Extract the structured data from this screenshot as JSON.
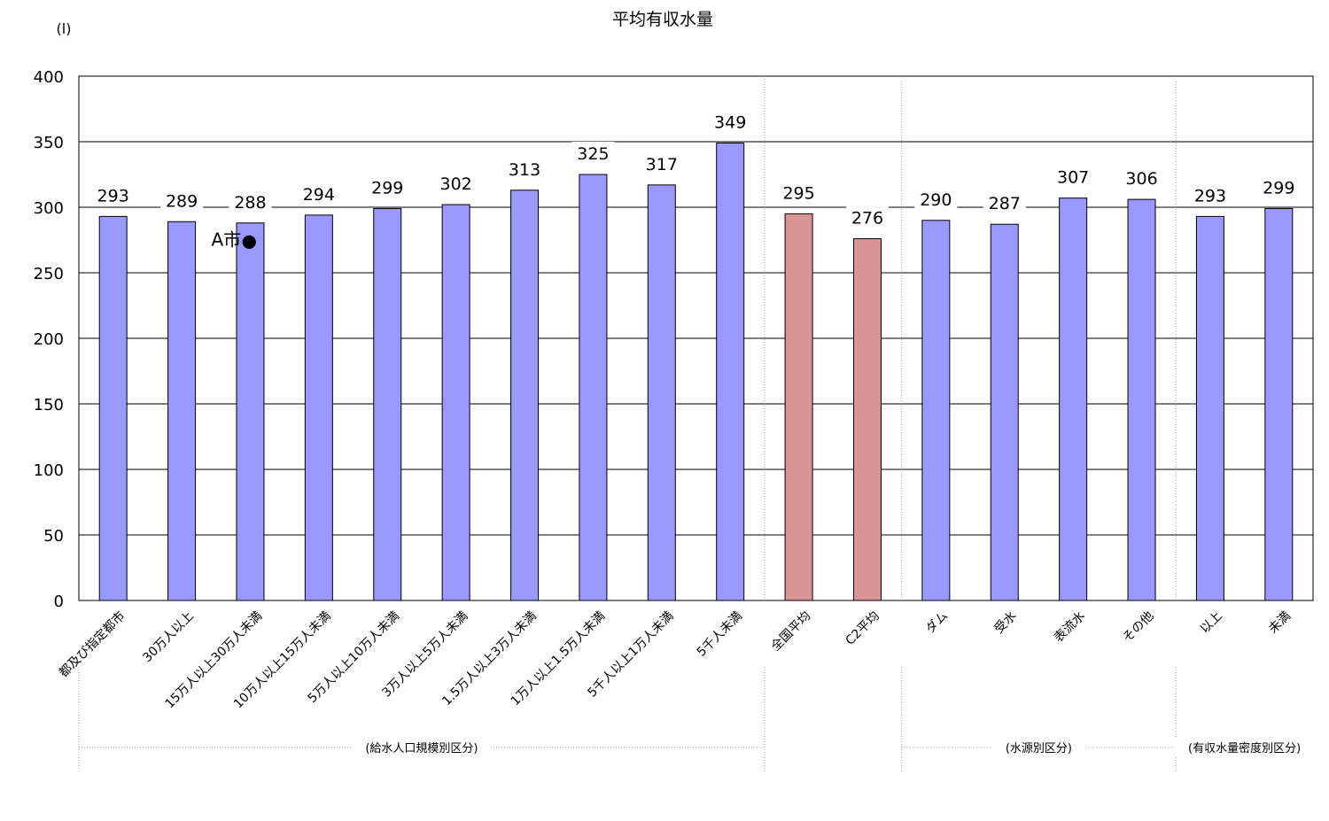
{
  "chart_data": {
    "type": "bar",
    "title": "平均有収水量",
    "unit_label": "(l)",
    "ylim": [
      0,
      400
    ],
    "yticks": [
      0,
      50,
      100,
      150,
      200,
      250,
      300,
      350,
      400
    ],
    "grid": true,
    "categories": [
      "都及び指定都市",
      "30万人以上",
      "15万人以上30万人未満",
      "10万人以上15万人未満",
      "5万人以上10万人未満",
      "3万人以上5万人未満",
      "1.5万人以上3万人未満",
      "1万人以上1.5万人未満",
      "5千人以上1万人未満",
      "5千人未満",
      "全国平均",
      "C2平均",
      "ダム",
      "受水",
      "表流水",
      "その他",
      "以上",
      "未満"
    ],
    "values": [
      293,
      289,
      288,
      294,
      299,
      302,
      313,
      325,
      317,
      349,
      295,
      276,
      290,
      287,
      307,
      306,
      293,
      299
    ],
    "bar_colors": [
      "#9999ff",
      "#9999ff",
      "#9999ff",
      "#9999ff",
      "#9999ff",
      "#9999ff",
      "#9999ff",
      "#9999ff",
      "#9999ff",
      "#9999ff",
      "#d99594",
      "#d99594",
      "#9999ff",
      "#9999ff",
      "#9999ff",
      "#9999ff",
      "#9999ff",
      "#9999ff"
    ],
    "groups": [
      {
        "label": "(給水人口規模別区分)",
        "from": 0,
        "to": 9
      },
      {
        "label": "(水源別区分)",
        "from": 12,
        "to": 15
      },
      {
        "label": "(有収水量密度別区分)",
        "from": 16,
        "to": 17
      }
    ],
    "annotation": {
      "text": "A市",
      "marker": "●",
      "category_index": 2,
      "value": 276
    }
  }
}
